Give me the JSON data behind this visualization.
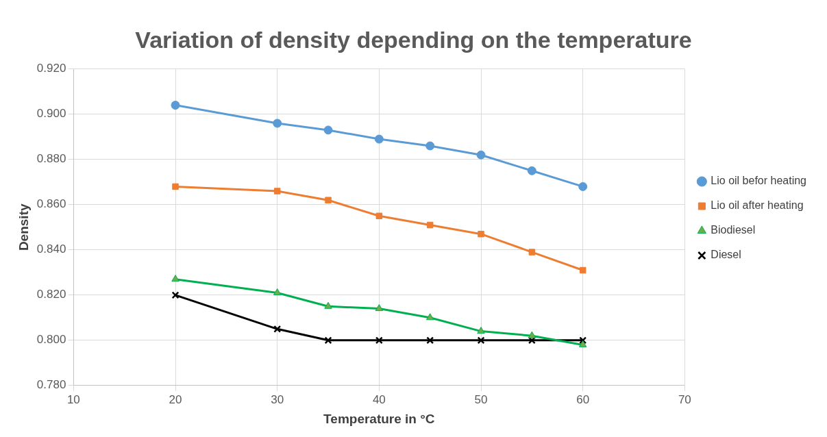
{
  "chart_data": {
    "type": "line",
    "title": "Variation of density depending on the temperature",
    "xlabel": "Temperature in °C",
    "ylabel": "Density",
    "x": [
      20,
      30,
      35,
      40,
      45,
      50,
      55,
      60
    ],
    "series": [
      {
        "name": "Lio oil befor heating",
        "color": "#5b9bd5",
        "marker": "circle",
        "values": [
          0.904,
          0.896,
          0.893,
          0.889,
          0.886,
          0.882,
          0.875,
          0.868
        ]
      },
      {
        "name": "Lio oil after heating",
        "color": "#ed7d31",
        "marker": "square",
        "values": [
          0.868,
          0.866,
          0.862,
          0.855,
          0.851,
          0.847,
          0.839,
          0.831
        ]
      },
      {
        "name": "Biodiesel",
        "color": "#00b050",
        "marker": "triangle",
        "values": [
          0.827,
          0.821,
          0.815,
          0.814,
          0.81,
          0.804,
          0.802,
          0.798
        ]
      },
      {
        "name": "Diesel",
        "color": "#000000",
        "marker": "cross",
        "values": [
          0.82,
          0.805,
          0.8,
          0.8,
          0.8,
          0.8,
          0.8,
          0.8
        ]
      }
    ],
    "xlim": [
      10,
      70
    ],
    "xticks": [
      10,
      20,
      30,
      40,
      50,
      60,
      70
    ],
    "ylim": [
      0.78,
      0.92
    ],
    "yticks": [
      {
        "value": 0.78,
        "label": "0.780"
      },
      {
        "value": 0.8,
        "label": "0.800"
      },
      {
        "value": 0.82,
        "label": "0.820"
      },
      {
        "value": 0.84,
        "label": "0.840"
      },
      {
        "value": 0.86,
        "label": "0.860"
      },
      {
        "value": 0.88,
        "label": "0.880"
      },
      {
        "value": 0.9,
        "label": "0.900"
      },
      {
        "value": 0.92,
        "label": "0.920"
      }
    ],
    "grid": true,
    "legend": "right",
    "line_style": "solid"
  }
}
